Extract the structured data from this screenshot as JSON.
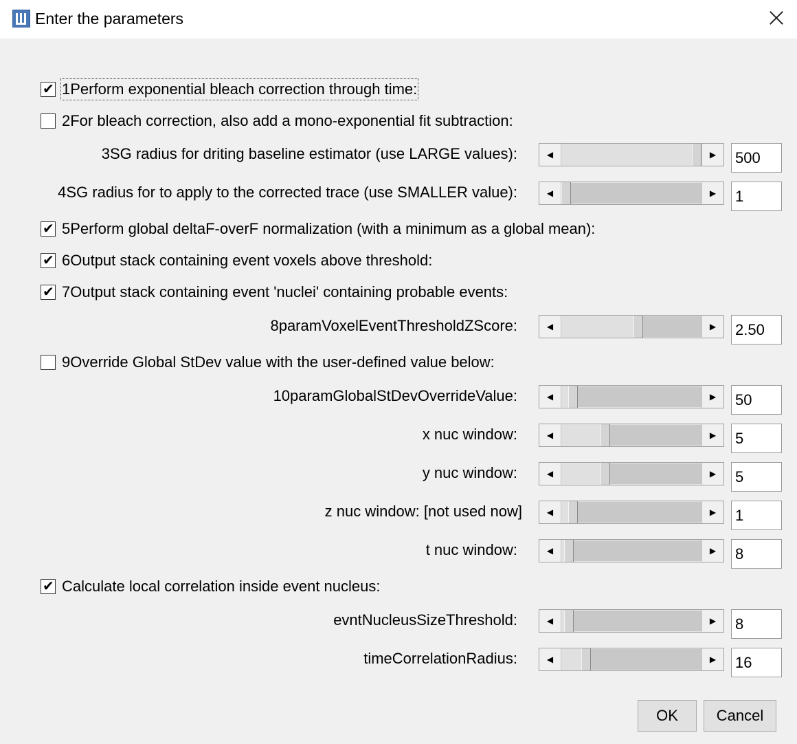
{
  "window": {
    "title": "Enter the parameters",
    "icon": "imagej-icon",
    "close": "close-icon"
  },
  "checkboxes": [
    {
      "label": "1Perform exponential bleach correction through time:",
      "checked": true
    },
    {
      "label": "2For bleach correction, also add a mono-exponential fit subtraction:",
      "checked": false
    },
    {
      "label": "5Perform global deltaF-overF normalization (with a minimum as a global mean):",
      "checked": true
    },
    {
      "label": "6Output stack containing event voxels above threshold:",
      "checked": true
    },
    {
      "label": "7Output stack containing event 'nuclei' containing probable events:",
      "checked": true
    },
    {
      "label": "9Override Global StDev value with the user-defined value below:",
      "checked": false
    },
    {
      "label": "Calculate local correlation inside event nucleus:",
      "checked": true
    }
  ],
  "sliders": [
    {
      "label": "3SG radius for driting baseline estimator (use LARGE values):",
      "value": "500",
      "level": 1.0
    },
    {
      "label": "4SG radius for to apply to the corrected trace (use SMALLER value):",
      "value": "1",
      "level": 0.0
    },
    {
      "label": "8paramVoxelEventThresholdZScore:",
      "value": "2.50",
      "level": 0.55
    },
    {
      "label": "10paramGlobalStDevOverrideValue:",
      "value": "50",
      "level": 0.05
    },
    {
      "label": "x nuc window:",
      "value": "5",
      "level": 0.3
    },
    {
      "label": "y nuc window:",
      "value": "5",
      "level": 0.3
    },
    {
      "label": "z nuc window: [not used now]",
      "value": "1",
      "level": 0.05
    },
    {
      "label": "t nuc window:",
      "value": "8",
      "level": 0.02
    },
    {
      "label": "evntNucleusSizeThreshold:",
      "value": "8",
      "level": 0.02
    },
    {
      "label": "timeCorrelationRadius:",
      "value": "16",
      "level": 0.15
    }
  ],
  "buttons": {
    "ok": "OK",
    "cancel": "Cancel"
  },
  "colors": {
    "dialog_bg": "#f0f0f0",
    "titlebar_bg": "#ffffff",
    "slider_track": "#c8c8c8"
  }
}
